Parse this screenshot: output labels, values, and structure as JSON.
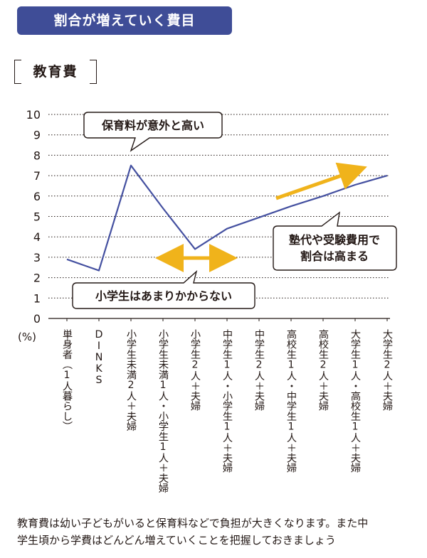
{
  "header": {
    "title": "割合が増えていく費目"
  },
  "section": {
    "title": "教育費"
  },
  "chart_data": {
    "type": "line",
    "y_unit": "(%)",
    "ylim": [
      0,
      10
    ],
    "yticks": [
      "0",
      "1",
      "2",
      "3",
      "4",
      "5",
      "6",
      "7",
      "8",
      "9",
      "10"
    ],
    "grid": true,
    "categories": [
      "単身者（1人暮らし）",
      "DINKS",
      "小学生未満2人＋夫婦",
      "小学生未満1人・小学生1人＋夫婦",
      "小学生2人＋夫婦",
      "中学生1人・小学生1人＋夫婦",
      "中学生2人＋夫婦",
      "高校生1人・中学生1人＋夫婦",
      "高校生2人＋夫婦",
      "大学生1人・高校生1人＋夫婦",
      "大学生2人＋夫婦"
    ],
    "series": [
      {
        "values": [
          2.9,
          2.35,
          7.5,
          5.4,
          3.4,
          4.4,
          4.95,
          5.5,
          6.0,
          6.55,
          7.0
        ]
      }
    ],
    "line_color": "#4450a0",
    "arrow_color": "#f0b31b",
    "annotations": [
      "保育料が意外と高い",
      "小学生はあまりかからない",
      "塾代や受験費用で",
      "割合は高まる"
    ]
  },
  "footer": {
    "line1": "教育費は幼い子どもがいると保育料などで負担が大きくなります。また中",
    "line2": "学生頃から学費はどんどん増えていくことを把握しておきましょう"
  }
}
